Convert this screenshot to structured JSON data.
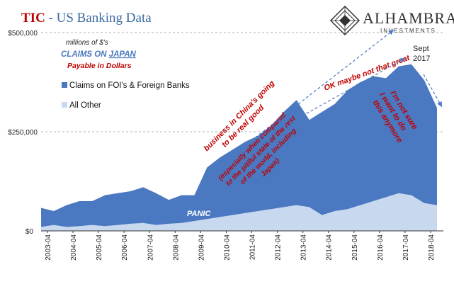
{
  "header": {
    "title_prefix": "TIC",
    "title_suffix": " - US Banking Data",
    "brand_name": "ALHAMBRA",
    "brand_sub": "INVESTMENTS"
  },
  "colors": {
    "foreign_banks": "#4a78c1",
    "all_other": "#c7d8ef",
    "annotation": "#c00000",
    "brand_blue": "#3b6aa0",
    "gridline": "#999999"
  },
  "legend": {
    "units": "millions of $'s",
    "claims_on": "CLAIMS ON",
    "country": "JAPAN",
    "payable": "Payable in Dollars",
    "series1": "Claims on FOI's & Foreign Banks",
    "series2": "All Other"
  },
  "annotations": {
    "panic": "PANIC",
    "business_line1": "business in China's going",
    "business_line2": "to be real good",
    "especially_line1": "(especially when compared",
    "especially_line2": "to the pitiful state of the rest",
    "especially_line3": "of the world, including",
    "especially_line4": "Japan)",
    "ok_maybe": "OK maybe not that great",
    "sept_line1": "Sept",
    "sept_line2": "2017",
    "not_sure_line1": "I'm not sure",
    "not_sure_line2": "I want to do",
    "not_sure_line3": "this anymore"
  },
  "chart_data": {
    "type": "area",
    "stacked": true,
    "ylim": [
      0,
      500000
    ],
    "y_ticks": [
      0,
      250000,
      500000
    ],
    "y_tick_labels": [
      "$0",
      "$250,000",
      "$500,000"
    ],
    "x_tick_labels": [
      "2003-04",
      "2004-04",
      "2005-04",
      "2006-04",
      "2007-04",
      "2008-04",
      "2009-04",
      "2010-04",
      "2011-04",
      "2012-04",
      "2013-04",
      "2014-04",
      "2015-04",
      "2016-04",
      "2017-04",
      "2018-04"
    ],
    "gridlines": "horizontal dashed",
    "x": [
      "2003-01",
      "2003-07",
      "2004-01",
      "2004-07",
      "2005-01",
      "2005-07",
      "2006-01",
      "2006-07",
      "2007-01",
      "2007-07",
      "2008-01",
      "2008-07",
      "2009-01",
      "2009-07",
      "2010-01",
      "2010-07",
      "2011-01",
      "2011-07",
      "2012-01",
      "2012-07",
      "2013-01",
      "2013-07",
      "2014-01",
      "2014-07",
      "2015-01",
      "2015-07",
      "2016-01",
      "2016-07",
      "2017-01",
      "2017-07",
      "2018-01",
      "2018-07"
    ],
    "series": [
      {
        "name": "All Other",
        "values": [
          10000,
          15000,
          10000,
          12000,
          15000,
          12000,
          15000,
          18000,
          20000,
          15000,
          18000,
          20000,
          25000,
          30000,
          35000,
          40000,
          45000,
          50000,
          55000,
          60000,
          65000,
          60000,
          40000,
          50000,
          55000,
          65000,
          75000,
          85000,
          95000,
          90000,
          70000,
          65000
        ]
      },
      {
        "name": "Claims on FOI's & Foreign Banks",
        "values": [
          48000,
          35000,
          55000,
          63000,
          60000,
          78000,
          80000,
          82000,
          90000,
          80000,
          60000,
          70000,
          65000,
          130000,
          150000,
          165000,
          180000,
          190000,
          210000,
          240000,
          265000,
          220000,
          260000,
          270000,
          300000,
          310000,
          315000,
          300000,
          320000,
          330000,
          310000,
          245000
        ]
      }
    ]
  }
}
